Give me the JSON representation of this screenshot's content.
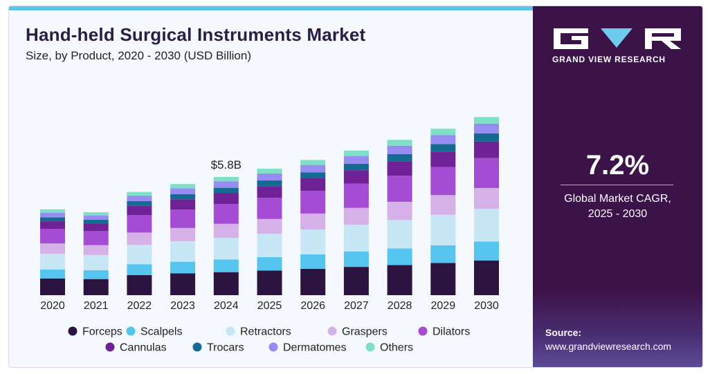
{
  "header": {
    "title": "Hand-held Surgical Instruments Market",
    "subtitle": "Size, by Product, 2020 - 2030 (USD Billion)"
  },
  "sidebar": {
    "brand": "GRAND VIEW RESEARCH",
    "cagr_value": "7.2%",
    "cagr_label": "Global Market CAGR,",
    "cagr_period": "2025 - 2030",
    "source_title": "Source:",
    "source_url": "www.grandviewresearch.com"
  },
  "colors": {
    "accent_bar": "#5bc2ec",
    "sidebar_bg": "#3b1348"
  },
  "chart_data": {
    "type": "bar",
    "stacked": true,
    "categories": [
      "2020",
      "2021",
      "2022",
      "2023",
      "2024",
      "2025",
      "2026",
      "2027",
      "2028",
      "2029",
      "2030"
    ],
    "annotation": {
      "category": "2024",
      "text": "$5.8B"
    },
    "series": [
      {
        "name": "Forceps",
        "color": "#2b1440",
        "values": [
          0.8,
          0.77,
          0.96,
          1.04,
          1.1,
          1.18,
          1.26,
          1.35,
          1.44,
          1.54,
          1.66
        ]
      },
      {
        "name": "Scalpels",
        "color": "#55c5ef",
        "values": [
          0.43,
          0.42,
          0.52,
          0.56,
          0.6,
          0.64,
          0.69,
          0.74,
          0.79,
          0.84,
          0.9
        ]
      },
      {
        "name": "Retractors",
        "color": "#c7e7f7",
        "values": [
          0.75,
          0.73,
          0.92,
          0.98,
          1.04,
          1.11,
          1.19,
          1.27,
          1.36,
          1.46,
          1.56
        ]
      },
      {
        "name": "Graspers",
        "color": "#d6b1e8",
        "values": [
          0.49,
          0.47,
          0.59,
          0.63,
          0.67,
          0.71,
          0.76,
          0.81,
          0.87,
          0.94,
          1.0
        ]
      },
      {
        "name": "Dilators",
        "color": "#a64bd3",
        "values": [
          0.69,
          0.67,
          0.83,
          0.88,
          0.94,
          1.01,
          1.08,
          1.16,
          1.25,
          1.34,
          1.43
        ]
      },
      {
        "name": "Cannulas",
        "color": "#6e2295",
        "values": [
          0.37,
          0.36,
          0.45,
          0.49,
          0.52,
          0.56,
          0.6,
          0.64,
          0.69,
          0.74,
          0.79
        ]
      },
      {
        "name": "Trocars",
        "color": "#156a92",
        "values": [
          0.19,
          0.18,
          0.22,
          0.24,
          0.26,
          0.27,
          0.29,
          0.31,
          0.34,
          0.36,
          0.39
        ]
      },
      {
        "name": "Dermatomes",
        "color": "#978cf1",
        "values": [
          0.22,
          0.21,
          0.26,
          0.29,
          0.31,
          0.33,
          0.35,
          0.37,
          0.4,
          0.43,
          0.46
        ]
      },
      {
        "name": "Others",
        "color": "#7fdfc8",
        "values": [
          0.16,
          0.15,
          0.18,
          0.2,
          0.21,
          0.23,
          0.24,
          0.26,
          0.28,
          0.3,
          0.32
        ]
      }
    ],
    "ylim": [
      0,
      10.5
    ],
    "grid": false,
    "legend_position": "bottom"
  }
}
